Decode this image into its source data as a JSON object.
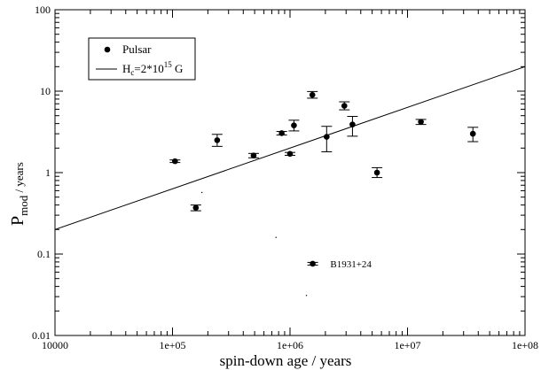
{
  "chart_data": {
    "type": "scatter",
    "xscale": "log",
    "yscale": "log",
    "xlim": [
      10000,
      100000000
    ],
    "ylim": [
      0.01,
      100
    ],
    "xticks": [
      "10000",
      "1e+05",
      "1e+06",
      "1e+07",
      "1e+08"
    ],
    "yticks": [
      "0.01",
      "0.1",
      "1",
      "10",
      "100"
    ],
    "xlabel": "spin-down age / years",
    "ylabel": {
      "main": "P",
      "sub": "mod",
      "rest": " / years"
    },
    "grid": false,
    "legend": {
      "placement": "top-left",
      "entries": [
        {
          "kind": "marker",
          "label": "Pulsar"
        },
        {
          "kind": "line",
          "label": {
            "main": "H",
            "sub": "c",
            "mid": "=2*10",
            "sup": "15",
            "end": " G"
          }
        }
      ]
    },
    "series": [
      {
        "name": "Pulsar",
        "points": [
          {
            "x": 105000,
            "y": 1.38,
            "ylo": 1.33,
            "yhi": 1.43
          },
          {
            "x": 158000,
            "y": 0.37,
            "ylo": 0.34,
            "yhi": 0.4
          },
          {
            "x": 240000,
            "y": 2.5,
            "ylo": 2.1,
            "yhi": 2.95
          },
          {
            "x": 490000,
            "y": 1.62,
            "ylo": 1.52,
            "yhi": 1.72
          },
          {
            "x": 850000,
            "y": 3.05,
            "ylo": 2.9,
            "yhi": 3.2
          },
          {
            "x": 1000000,
            "y": 1.7,
            "ylo": 1.63,
            "yhi": 1.77
          },
          {
            "x": 1080000,
            "y": 3.8,
            "ylo": 3.25,
            "yhi": 4.4
          },
          {
            "x": 1550000,
            "y": 9.0,
            "ylo": 8.2,
            "yhi": 9.9
          },
          {
            "x": 1560000,
            "y": 0.076,
            "ylo": 0.073,
            "yhi": 0.079
          },
          {
            "x": 2050000,
            "y": 2.75,
            "ylo": 1.8,
            "yhi": 3.7
          },
          {
            "x": 2900000,
            "y": 6.6,
            "ylo": 5.9,
            "yhi": 7.4
          },
          {
            "x": 3400000,
            "y": 3.9,
            "ylo": 2.8,
            "yhi": 4.9
          },
          {
            "x": 5500000,
            "y": 1.0,
            "ylo": 0.87,
            "yhi": 1.15
          },
          {
            "x": 13000000,
            "y": 4.2,
            "ylo": 3.9,
            "yhi": 4.5
          },
          {
            "x": 36000000,
            "y": 3.0,
            "ylo": 2.4,
            "yhi": 3.6
          }
        ]
      }
    ],
    "model_line": {
      "name": "H_c=2*10^15 G",
      "x": [
        10000,
        100000000
      ],
      "y": [
        0.2,
        20
      ]
    },
    "annotations": [
      {
        "text": "B1931+24",
        "x": 2200000,
        "y": 0.076
      }
    ],
    "stray_dots": [
      {
        "x": 178000,
        "y": 0.57
      },
      {
        "x": 760000,
        "y": 0.16
      },
      {
        "x": 1380000,
        "y": 0.031
      }
    ]
  }
}
